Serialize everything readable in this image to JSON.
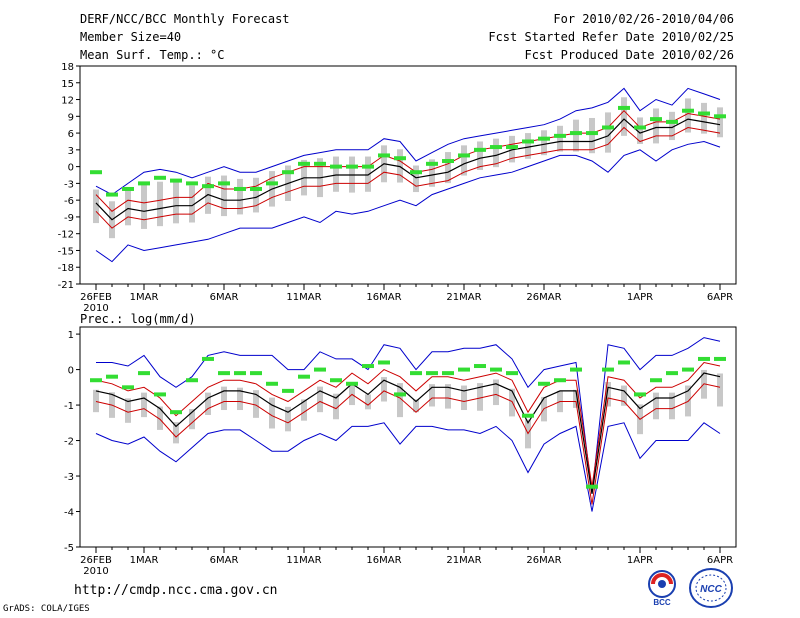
{
  "header": {
    "title": "DERF/NCC/BCC Monthly Forecast",
    "member_size": "Member Size=40",
    "variable": "Mean Surf. Temp.: °C",
    "period": "For 2010/02/26-2010/04/06",
    "refer_date": "Fcst Started Refer Date 2010/02/25",
    "produced_date": "Fcst Produced Date 2010/02/26"
  },
  "footer": {
    "url": "http://cmdp.ncc.cma.gov.cn",
    "grads": "GrADS: COLA/IGES",
    "logo1_text": "BCC",
    "logo2_text": "NCC"
  },
  "colors": {
    "mean": "#000000",
    "std_band": "#cc0000",
    "extreme": "#0000cc",
    "ensemble_bar": "#c8c8c8",
    "marker": "#33dd33"
  },
  "chart_data": [
    {
      "type": "line",
      "title": "Mean Surf. Temp.: °C",
      "xlabel": "",
      "ylabel": "",
      "x_ticks": [
        "26FEB\n2010",
        "1MAR",
        "6MAR",
        "11MAR",
        "16MAR",
        "21MAR",
        "26MAR",
        "1APR",
        "6APR"
      ],
      "x_tick_days": [
        1,
        4,
        9,
        14,
        19,
        24,
        29,
        35,
        40
      ],
      "ylim": [
        -21,
        18
      ],
      "y_ticks": [
        -21,
        -18,
        -15,
        -12,
        -9,
        -6,
        -3,
        0,
        3,
        6,
        9,
        12,
        15,
        18
      ],
      "days": [
        1,
        2,
        3,
        4,
        5,
        6,
        7,
        8,
        9,
        10,
        11,
        12,
        13,
        14,
        15,
        16,
        17,
        18,
        19,
        20,
        21,
        22,
        23,
        24,
        25,
        26,
        27,
        28,
        29,
        30,
        31,
        32,
        33,
        34,
        35,
        36,
        37,
        38,
        39,
        40
      ],
      "series": [
        {
          "name": "max",
          "values": [
            -15,
            -17,
            -14,
            -15,
            -14.5,
            -14,
            -13.5,
            -13,
            -12,
            -11,
            -11,
            -11,
            -10,
            -9,
            -10,
            -8,
            -8.5,
            -8,
            -7,
            -6,
            -7,
            -5,
            -4,
            -3,
            -2,
            -1.5,
            -1,
            0,
            1,
            2,
            2,
            1,
            -1,
            2,
            3,
            1,
            3,
            4,
            4.5,
            3.5
          ]
        },
        {
          "name": "min",
          "values": [
            -3.5,
            -5,
            -3,
            -1,
            -0.5,
            -1,
            -2,
            -1,
            0,
            -1,
            -1,
            0,
            1,
            2,
            2.5,
            3,
            3,
            3,
            5,
            4.5,
            1,
            2.5,
            4,
            5,
            5.5,
            6,
            6.5,
            7,
            7.5,
            8.5,
            10,
            10.5,
            11.5,
            14,
            10,
            12,
            11,
            14,
            13,
            12
          ]
        },
        {
          "name": "mean+std",
          "values": [
            -5,
            -8,
            -6,
            -6.5,
            -6,
            -5.5,
            -5.5,
            -3,
            -4,
            -4,
            -3.5,
            -2,
            -1,
            0,
            0,
            0,
            0,
            0,
            2,
            1,
            -1,
            -0.5,
            0.5,
            2,
            3,
            3.5,
            4,
            4.5,
            5,
            5.5,
            6,
            6,
            7,
            10,
            7,
            8,
            8,
            9.5,
            9,
            8.5
          ]
        },
        {
          "name": "mean",
          "values": [
            -6.5,
            -9.5,
            -7.5,
            -8,
            -7.5,
            -7,
            -7,
            -5,
            -6,
            -6,
            -5.5,
            -4,
            -3,
            -2,
            -2,
            -1.5,
            -1.5,
            -1.5,
            0.5,
            0,
            -2,
            -1.5,
            -1,
            0.5,
            1.5,
            2,
            3,
            3.5,
            4,
            4.5,
            4.5,
            4.5,
            5.5,
            8.5,
            6,
            7,
            7,
            8.5,
            8,
            7.5
          ]
        },
        {
          "name": "mean-std",
          "values": [
            -8,
            -11,
            -9,
            -9.5,
            -9,
            -8.5,
            -8.5,
            -6.5,
            -7.5,
            -7.5,
            -7,
            -5.5,
            -4.5,
            -3.5,
            -3.5,
            -3,
            -3,
            -3,
            -1,
            -1.5,
            -3.5,
            -3,
            -2.5,
            -1,
            0,
            0.5,
            1.5,
            2,
            2.5,
            3,
            3,
            3,
            4,
            7,
            4.5,
            5.5,
            5.5,
            7,
            6.5,
            6
          ]
        }
      ],
      "markers": [
        -1,
        -5,
        -4,
        -3,
        -2,
        -2.5,
        -3,
        -3.5,
        -3,
        -4,
        -4,
        -3,
        -1,
        0.5,
        0.5,
        0,
        0,
        0,
        2,
        1.5,
        -1,
        0.5,
        1,
        2,
        3,
        3.5,
        3.5,
        4.5,
        5,
        5.5,
        6,
        6,
        7,
        10.5,
        7,
        8.5,
        8,
        10,
        9.5,
        9
      ]
    },
    {
      "type": "line",
      "title": "Prec.: log(mm/d)",
      "xlabel": "",
      "ylabel": "",
      "x_ticks": [
        "26FEB\n2010",
        "1MAR",
        "6MAR",
        "11MAR",
        "16MAR",
        "21MAR",
        "26MAR",
        "1APR",
        "6APR"
      ],
      "x_tick_days": [
        1,
        4,
        9,
        14,
        19,
        24,
        29,
        35,
        40
      ],
      "ylim": [
        -5,
        1.2
      ],
      "y_ticks": [
        -5,
        -4,
        -3,
        -2,
        -1,
        0,
        1
      ],
      "days": [
        1,
        2,
        3,
        4,
        5,
        6,
        7,
        8,
        9,
        10,
        11,
        12,
        13,
        14,
        15,
        16,
        17,
        18,
        19,
        20,
        21,
        22,
        23,
        24,
        25,
        26,
        27,
        28,
        29,
        30,
        31,
        32,
        33,
        34,
        35,
        36,
        37,
        38,
        39,
        40
      ],
      "series": [
        {
          "name": "max",
          "values": [
            0.2,
            0.2,
            0.1,
            0.4,
            -0.2,
            -0.5,
            -0.2,
            0.4,
            0.5,
            0.4,
            0.4,
            0.4,
            0,
            0,
            0.5,
            0.3,
            0.3,
            0,
            0.7,
            0.6,
            0,
            0.5,
            0.5,
            0.6,
            0.6,
            0.7,
            0.3,
            -0.5,
            0,
            0.1,
            0.2,
            -3.5,
            0.7,
            0.6,
            0,
            0.4,
            0.4,
            0.6,
            0.9,
            0.8
          ]
        },
        {
          "name": "min",
          "values": [
            -1.8,
            -2,
            -2.1,
            -1.9,
            -2.3,
            -2.6,
            -2.2,
            -1.8,
            -1.7,
            -1.7,
            -2,
            -2.3,
            -2.3,
            -2,
            -1.8,
            -2,
            -1.6,
            -1.6,
            -1.5,
            -2.1,
            -1.6,
            -1.6,
            -1.7,
            -1.7,
            -1.8,
            -1.6,
            -2,
            -2.9,
            -2.1,
            -1.8,
            -1.6,
            -4,
            -1.6,
            -1.5,
            -2.5,
            -2,
            -2,
            -2,
            -1.5,
            -1.8
          ]
        },
        {
          "name": "mean+std",
          "values": [
            -0.3,
            -0.4,
            -0.6,
            -0.5,
            -0.8,
            -1.3,
            -0.9,
            -0.5,
            -0.3,
            -0.3,
            -0.4,
            -0.7,
            -0.9,
            -0.6,
            -0.3,
            -0.5,
            -0.1,
            -0.4,
            0,
            -0.2,
            -0.6,
            -0.2,
            -0.2,
            -0.3,
            -0.2,
            -0.1,
            -0.3,
            -1.2,
            -0.5,
            -0.3,
            -0.3,
            -3.3,
            -0.2,
            -0.3,
            -0.8,
            -0.5,
            -0.5,
            -0.3,
            0.2,
            0.1
          ]
        },
        {
          "name": "mean",
          "values": [
            -0.6,
            -0.7,
            -0.9,
            -0.8,
            -1.1,
            -1.6,
            -1.2,
            -0.8,
            -0.6,
            -0.6,
            -0.7,
            -1,
            -1.2,
            -0.9,
            -0.6,
            -0.8,
            -0.4,
            -0.7,
            -0.3,
            -0.5,
            -0.9,
            -0.5,
            -0.5,
            -0.6,
            -0.5,
            -0.4,
            -0.6,
            -1.5,
            -0.8,
            -0.6,
            -0.6,
            -3.5,
            -0.5,
            -0.6,
            -1.1,
            -0.8,
            -0.8,
            -0.6,
            -0.1,
            -0.2
          ]
        },
        {
          "name": "mean-std",
          "values": [
            -0.9,
            -1,
            -1.2,
            -1.1,
            -1.4,
            -1.9,
            -1.5,
            -1.1,
            -0.9,
            -0.9,
            -1,
            -1.3,
            -1.5,
            -1.2,
            -0.9,
            -1.1,
            -0.7,
            -1,
            -0.6,
            -0.8,
            -1.2,
            -0.8,
            -0.8,
            -0.9,
            -0.8,
            -0.7,
            -0.9,
            -1.8,
            -1.1,
            -0.9,
            -0.9,
            -3.8,
            -0.8,
            -0.9,
            -1.4,
            -1.1,
            -1.1,
            -0.9,
            -0.4,
            -0.5
          ]
        }
      ],
      "markers": [
        -0.3,
        -0.2,
        -0.5,
        -0.1,
        -0.7,
        -1.2,
        -0.3,
        0.3,
        -0.1,
        -0.1,
        -0.1,
        -0.4,
        -0.6,
        -0.2,
        0,
        -0.3,
        -0.4,
        0.1,
        0.2,
        -0.7,
        -0.1,
        -0.1,
        -0.1,
        0,
        0.1,
        0,
        -0.1,
        -1.3,
        -0.4,
        -0.3,
        0,
        -3.3,
        0,
        0.2,
        -0.7,
        -0.3,
        -0.1,
        0,
        0.3,
        0.3
      ]
    }
  ]
}
